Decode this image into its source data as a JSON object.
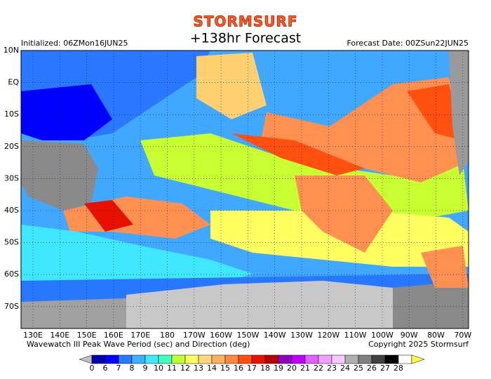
{
  "header": {
    "logo": "STORMSURF",
    "title": "+138hr Forecast",
    "initialized": "Initialized: 06ZMon16JUN25",
    "forecast_date": "Forecast Date: 00ZSun22JUN25"
  },
  "map": {
    "lat_labels": [
      "10N",
      "EQ",
      "10S",
      "20S",
      "30S",
      "40S",
      "50S",
      "60S",
      "70S"
    ],
    "lon_labels": [
      "130E",
      "140E",
      "150E",
      "160E",
      "170E",
      "180",
      "170W",
      "160W",
      "150W",
      "140W",
      "130W",
      "120W",
      "110W",
      "100W",
      "90W",
      "80W",
      "70W"
    ]
  },
  "footer": {
    "caption": "Wavewatch III Peak Wave Period (sec) and Direction (deg)",
    "copyright": "Copyright 2025 Stormsurf"
  },
  "colorbar": {
    "labels": [
      0,
      6,
      7,
      8,
      9,
      10,
      11,
      12,
      13,
      14,
      15,
      16,
      17,
      18,
      19,
      20,
      21,
      22,
      23,
      24,
      25,
      26,
      27,
      28
    ],
    "colors": [
      "#c0c0c0",
      "#0000b0",
      "#0000ff",
      "#2878ff",
      "#40b0ff",
      "#40e8ff",
      "#40ffc0",
      "#c0ff30",
      "#ffff60",
      "#ffd880",
      "#ffb060",
      "#ff8840",
      "#ff5010",
      "#e81000",
      "#b80000",
      "#9000c0",
      "#c000ff",
      "#e060ff",
      "#f0a0ff",
      "#f8c8ff",
      "#b0b0b0",
      "#808080",
      "#404040",
      "#000000",
      "#ffffff",
      "#ffff40"
    ]
  }
}
